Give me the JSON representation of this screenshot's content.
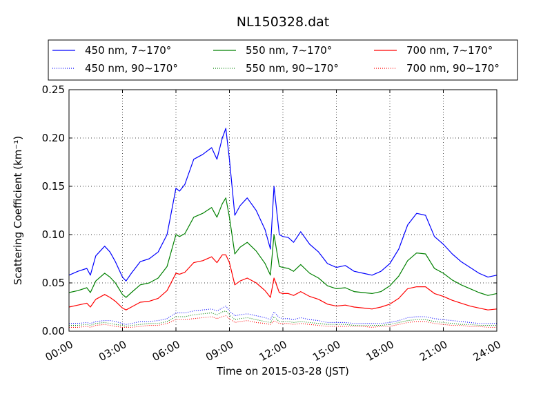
{
  "chart_data": {
    "type": "line",
    "title": "NL150328.dat",
    "xlabel": "Time on 2015-03-28 (JST)",
    "ylabel": "Scattering Coefficient (km⁻¹)",
    "xlim": [
      0,
      24
    ],
    "ylim": [
      0,
      0.25
    ],
    "xticks": [
      0,
      3,
      6,
      9,
      12,
      15,
      18,
      21,
      24
    ],
    "xtick_labels": [
      "00:00",
      "03:00",
      "06:00",
      "09:00",
      "12:00",
      "15:00",
      "18:00",
      "21:00",
      "24:00"
    ],
    "yticks": [
      0,
      0.05,
      0.1,
      0.15,
      0.2,
      0.25
    ],
    "ytick_labels": [
      "0.00",
      "0.05",
      "0.10",
      "0.15",
      "0.20",
      "0.25"
    ],
    "grid": true,
    "legend_position": "top, above plot, 3 columns",
    "x": [
      0,
      0.5,
      1,
      1.2,
      1.5,
      2,
      2.3,
      2.6,
      3,
      3.2,
      3.5,
      4,
      4.5,
      5,
      5.5,
      6,
      6.2,
      6.5,
      7,
      7.5,
      8,
      8.3,
      8.6,
      8.8,
      9,
      9.3,
      9.6,
      10,
      10.5,
      11,
      11.3,
      11.5,
      11.8,
      12,
      12.3,
      12.6,
      13,
      13.5,
      14,
      14.5,
      15,
      15.5,
      16,
      16.5,
      17,
      17.5,
      18,
      18.5,
      19,
      19.5,
      20,
      20.5,
      21,
      21.5,
      22,
      22.5,
      23,
      23.5,
      24
    ],
    "series": [
      {
        "name": "450 nm, 7∼170°",
        "color": "#0000ff",
        "style": "solid",
        "values": [
          0.058,
          0.062,
          0.065,
          0.058,
          0.078,
          0.088,
          0.082,
          0.072,
          0.056,
          0.052,
          0.06,
          0.072,
          0.075,
          0.082,
          0.1,
          0.148,
          0.145,
          0.152,
          0.178,
          0.183,
          0.19,
          0.178,
          0.2,
          0.21,
          0.178,
          0.12,
          0.13,
          0.138,
          0.125,
          0.105,
          0.085,
          0.15,
          0.1,
          0.098,
          0.097,
          0.092,
          0.103,
          0.09,
          0.082,
          0.07,
          0.066,
          0.068,
          0.062,
          0.06,
          0.058,
          0.062,
          0.07,
          0.085,
          0.11,
          0.122,
          0.12,
          0.098,
          0.09,
          0.08,
          0.072,
          0.066,
          0.06,
          0.056,
          0.058
        ]
      },
      {
        "name": "550 nm, 7∼170°",
        "color": "#008000",
        "style": "solid",
        "values": [
          0.04,
          0.042,
          0.045,
          0.04,
          0.052,
          0.06,
          0.056,
          0.05,
          0.038,
          0.035,
          0.04,
          0.048,
          0.05,
          0.055,
          0.067,
          0.1,
          0.098,
          0.101,
          0.118,
          0.122,
          0.128,
          0.118,
          0.132,
          0.138,
          0.118,
          0.08,
          0.087,
          0.092,
          0.083,
          0.07,
          0.058,
          0.1,
          0.067,
          0.066,
          0.065,
          0.062,
          0.069,
          0.06,
          0.055,
          0.047,
          0.044,
          0.045,
          0.041,
          0.04,
          0.039,
          0.041,
          0.047,
          0.057,
          0.073,
          0.081,
          0.08,
          0.065,
          0.06,
          0.053,
          0.048,
          0.044,
          0.04,
          0.037,
          0.039
        ]
      },
      {
        "name": "700 nm, 7∼170°",
        "color": "#ff0000",
        "style": "solid",
        "values": [
          0.025,
          0.027,
          0.029,
          0.025,
          0.033,
          0.038,
          0.035,
          0.031,
          0.024,
          0.022,
          0.025,
          0.03,
          0.031,
          0.034,
          0.042,
          0.06,
          0.059,
          0.061,
          0.071,
          0.073,
          0.077,
          0.071,
          0.079,
          0.079,
          0.071,
          0.048,
          0.052,
          0.055,
          0.05,
          0.042,
          0.035,
          0.055,
          0.04,
          0.039,
          0.039,
          0.037,
          0.041,
          0.036,
          0.033,
          0.028,
          0.026,
          0.027,
          0.025,
          0.024,
          0.023,
          0.025,
          0.028,
          0.034,
          0.044,
          0.046,
          0.046,
          0.039,
          0.036,
          0.032,
          0.029,
          0.026,
          0.024,
          0.022,
          0.023
        ]
      },
      {
        "name": "450 nm, 90∼170°",
        "color": "#0000ff",
        "style": "dotted",
        "values": [
          0.008,
          0.008,
          0.009,
          0.008,
          0.01,
          0.011,
          0.011,
          0.01,
          0.008,
          0.007,
          0.008,
          0.01,
          0.01,
          0.011,
          0.013,
          0.019,
          0.019,
          0.019,
          0.021,
          0.022,
          0.023,
          0.021,
          0.024,
          0.026,
          0.021,
          0.016,
          0.017,
          0.018,
          0.016,
          0.014,
          0.012,
          0.02,
          0.014,
          0.013,
          0.013,
          0.012,
          0.014,
          0.012,
          0.011,
          0.009,
          0.009,
          0.009,
          0.008,
          0.008,
          0.008,
          0.008,
          0.009,
          0.011,
          0.014,
          0.015,
          0.015,
          0.013,
          0.012,
          0.011,
          0.01,
          0.009,
          0.008,
          0.008,
          0.008
        ]
      },
      {
        "name": "550 nm, 90∼170°",
        "color": "#008000",
        "style": "dotted",
        "values": [
          0.006,
          0.006,
          0.007,
          0.006,
          0.008,
          0.009,
          0.008,
          0.007,
          0.006,
          0.005,
          0.006,
          0.007,
          0.008,
          0.008,
          0.01,
          0.015,
          0.015,
          0.015,
          0.017,
          0.018,
          0.019,
          0.017,
          0.02,
          0.021,
          0.017,
          0.012,
          0.013,
          0.014,
          0.012,
          0.01,
          0.009,
          0.015,
          0.01,
          0.01,
          0.01,
          0.009,
          0.01,
          0.009,
          0.008,
          0.007,
          0.007,
          0.007,
          0.006,
          0.006,
          0.006,
          0.006,
          0.007,
          0.009,
          0.011,
          0.012,
          0.012,
          0.01,
          0.009,
          0.008,
          0.007,
          0.007,
          0.006,
          0.006,
          0.006
        ]
      },
      {
        "name": "700 nm, 90∼170°",
        "color": "#ff0000",
        "style": "dotted",
        "values": [
          0.004,
          0.004,
          0.005,
          0.004,
          0.006,
          0.007,
          0.006,
          0.005,
          0.004,
          0.004,
          0.004,
          0.005,
          0.006,
          0.006,
          0.008,
          0.012,
          0.012,
          0.012,
          0.013,
          0.014,
          0.015,
          0.013,
          0.015,
          0.016,
          0.013,
          0.009,
          0.01,
          0.011,
          0.009,
          0.008,
          0.007,
          0.011,
          0.008,
          0.008,
          0.008,
          0.007,
          0.008,
          0.007,
          0.006,
          0.005,
          0.005,
          0.005,
          0.005,
          0.005,
          0.004,
          0.005,
          0.005,
          0.007,
          0.009,
          0.01,
          0.01,
          0.008,
          0.007,
          0.006,
          0.006,
          0.005,
          0.005,
          0.004,
          0.004
        ]
      }
    ]
  }
}
